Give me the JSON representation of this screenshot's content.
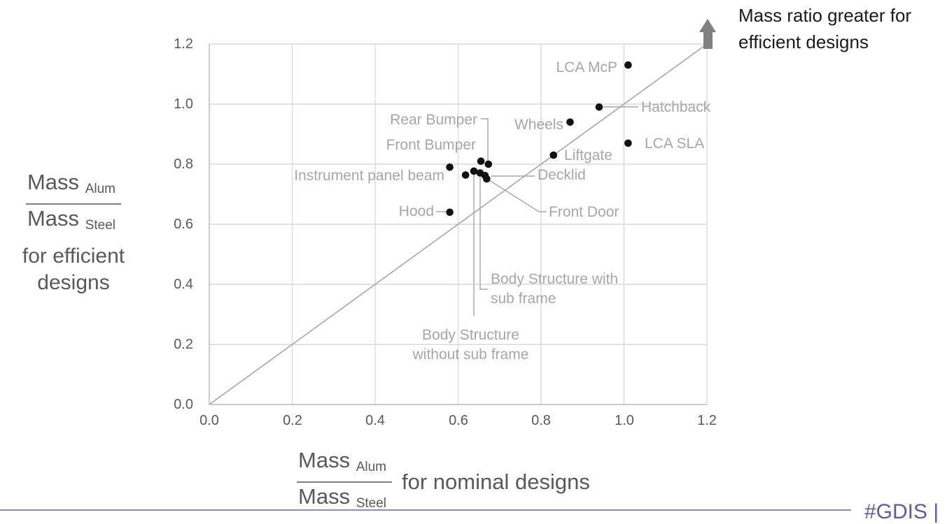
{
  "annotation_note": "Mass ratio greater for\nefficient designs",
  "footer": {
    "hashtag_text": "#GDIS  |"
  },
  "colors": {
    "grid": "#D9D9D9",
    "axis_line": "#BFBFBF",
    "diagonal": "#A6A6A6",
    "leader": "#A6A6A6",
    "dot": "#111111",
    "point_label": "#A6A6A6",
    "tick_label": "#595959",
    "axis_text": "#595959",
    "arrow": "#808080",
    "note_text": "#1A1A1A",
    "footer_text": "#5A5EA6",
    "footer_line": "#8A8DC8"
  },
  "y_axis_label": {
    "numerator": "Mass",
    "numerator_sub": "Alum",
    "denominator": "Mass",
    "denominator_sub": "Steel",
    "suffix": "for efficient\ndesigns"
  },
  "x_axis_label": {
    "numerator": "Mass",
    "numerator_sub": "Alum",
    "denominator": "Mass",
    "denominator_sub": "Steel",
    "suffix": "for nominal designs"
  },
  "chart_data": {
    "type": "scatter",
    "title": "",
    "xlabel": "Mass Alum / Mass Steel for nominal designs",
    "ylabel": "Mass Alum / Mass Steel for efficient designs",
    "xlim": [
      0.0,
      1.2
    ],
    "ylim": [
      0.0,
      1.2
    ],
    "x_ticks": [
      "0.0",
      "0.2",
      "0.4",
      "0.6",
      "0.8",
      "1.0",
      "1.2"
    ],
    "y_ticks": [
      "0.0",
      "0.2",
      "0.4",
      "0.6",
      "0.8",
      "1.0",
      "1.2"
    ],
    "grid": true,
    "identity_line": true,
    "legend": "none",
    "points": [
      {
        "label": "Hood",
        "x": 0.58,
        "y": 0.64
      },
      {
        "label": "Instrument panel beam",
        "x": 0.58,
        "y": 0.79
      },
      {
        "label": "Front Bumper",
        "x": 0.655,
        "y": 0.81
      },
      {
        "label": "Rear Bumper",
        "x": 0.673,
        "y": 0.8
      },
      {
        "label": "",
        "x": 0.618,
        "y": 0.764
      },
      {
        "label": "Body Structure\nwithout sub frame",
        "x": 0.638,
        "y": 0.777
      },
      {
        "label": "Body Structure with\nsub frame",
        "x": 0.653,
        "y": 0.771
      },
      {
        "label": "Decklid",
        "x": 0.665,
        "y": 0.762
      },
      {
        "label": "Front Door",
        "x": 0.669,
        "y": 0.751
      },
      {
        "label": "Liftgate",
        "x": 0.83,
        "y": 0.83
      },
      {
        "label": "Wheels",
        "x": 0.87,
        "y": 0.94
      },
      {
        "label": "Hatchback",
        "x": 0.94,
        "y": 0.99
      },
      {
        "label": "LCA SLA",
        "x": 1.01,
        "y": 0.87
      },
      {
        "label": "LCA McP",
        "x": 1.01,
        "y": 1.13
      }
    ]
  }
}
